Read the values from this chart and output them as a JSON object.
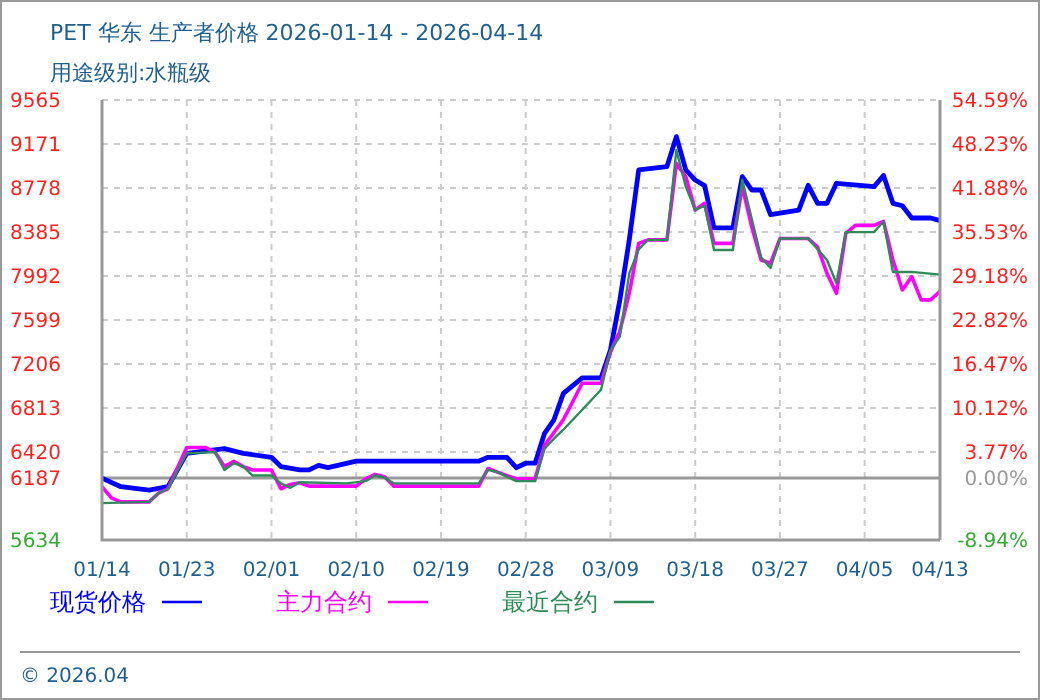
{
  "chart_data": {
    "type": "line",
    "title": "PET 华东 生产者价格 2026-01-14 - 2026-04-14",
    "subtitle": "用途级别:水瓶级",
    "xlim": [
      "2026-01-14",
      "2026-04-13"
    ],
    "xticks": [
      {
        "value": "2026-01-14",
        "label": "01/14"
      },
      {
        "value": "2026-01-23",
        "label": "01/23"
      },
      {
        "value": "2026-02-01",
        "label": "02/01"
      },
      {
        "value": "2026-02-10",
        "label": "02/10"
      },
      {
        "value": "2026-02-19",
        "label": "02/19"
      },
      {
        "value": "2026-02-28",
        "label": "02/28"
      },
      {
        "value": "2026-03-09",
        "label": "03/09"
      },
      {
        "value": "2026-03-18",
        "label": "03/18"
      },
      {
        "value": "2026-03-27",
        "label": "03/27"
      },
      {
        "value": "2026-04-05",
        "label": "04/05"
      },
      {
        "value": "2026-04-13",
        "label": "04/13"
      }
    ],
    "ylim": [
      5634,
      9565
    ],
    "yticks": [
      5634,
      6187,
      6420,
      6813,
      7206,
      7599,
      7992,
      8385,
      8778,
      9171,
      9565
    ],
    "y2lim": [
      -8.94,
      54.59
    ],
    "y2ticks": [
      {
        "value": -8.94,
        "label": "-8.94%"
      },
      {
        "value": 0,
        "label": "0.00%"
      },
      {
        "value": 3.77,
        "label": "3.77%"
      },
      {
        "value": 10.12,
        "label": "10.12%"
      },
      {
        "value": 16.47,
        "label": "16.47%"
      },
      {
        "value": 22.82,
        "label": "22.82%"
      },
      {
        "value": 29.18,
        "label": "29.18%"
      },
      {
        "value": 35.53,
        "label": "35.53%"
      },
      {
        "value": 41.88,
        "label": "41.88%"
      },
      {
        "value": 48.23,
        "label": "48.23%"
      },
      {
        "value": 54.59,
        "label": "54.59%"
      }
    ],
    "grid": true,
    "legend": "bottom",
    "line_style": "solid",
    "marker": "none",
    "ref_lines": [
      {
        "axis": "y",
        "value": 6187,
        "color": "#999999",
        "line_style": "solid"
      }
    ],
    "annotations": [
      "© 2026.04"
    ],
    "series": [
      {
        "name": "现货价格",
        "color": "#0000ff",
        "x": [
          "2026-01-14",
          "2026-01-16",
          "2026-01-19",
          "2026-01-21",
          "2026-01-23",
          "2026-01-27",
          "2026-01-29",
          "2026-02-01",
          "2026-02-02",
          "2026-02-04",
          "2026-02-05",
          "2026-02-06",
          "2026-02-07",
          "2026-02-10",
          "2026-02-23",
          "2026-02-24",
          "2026-02-26",
          "2026-02-27",
          "2026-02-28",
          "2026-03-01",
          "2026-03-02",
          "2026-03-03",
          "2026-03-04",
          "2026-03-06",
          "2026-03-08",
          "2026-03-09",
          "2026-03-10",
          "2026-03-11",
          "2026-03-12",
          "2026-03-15",
          "2026-03-16",
          "2026-03-17",
          "2026-03-18",
          "2026-03-19",
          "2026-03-20",
          "2026-03-22",
          "2026-03-23",
          "2026-03-24",
          "2026-03-25",
          "2026-03-26",
          "2026-03-29",
          "2026-03-30",
          "2026-03-31",
          "2026-04-01",
          "2026-04-02",
          "2026-04-06",
          "2026-04-07",
          "2026-04-08",
          "2026-04-09",
          "2026-04-10",
          "2026-04-12",
          "2026-04-13"
        ],
        "values": [
          6187,
          6110,
          6080,
          6110,
          6408,
          6450,
          6408,
          6373,
          6290,
          6260,
          6260,
          6300,
          6280,
          6338,
          6338,
          6373,
          6373,
          6280,
          6320,
          6320,
          6587,
          6708,
          6944,
          7082,
          7082,
          7332,
          7779,
          8315,
          8940,
          8970,
          9238,
          8940,
          8850,
          8800,
          8422,
          8422,
          8881,
          8761,
          8761,
          8541,
          8582,
          8803,
          8642,
          8642,
          8821,
          8791,
          8891,
          8642,
          8620,
          8511,
          8511,
          8487
        ]
      },
      {
        "name": "主力合约",
        "color": "#ff00ff",
        "x": [
          "2026-01-14",
          "2026-01-15",
          "2026-01-16",
          "2026-01-19",
          "2026-01-20",
          "2026-01-21",
          "2026-01-23",
          "2026-01-25",
          "2026-01-26",
          "2026-01-27",
          "2026-01-28",
          "2026-01-29",
          "2026-01-30",
          "2026-02-01",
          "2026-02-02",
          "2026-02-03",
          "2026-02-04",
          "2026-02-05",
          "2026-02-10",
          "2026-02-11",
          "2026-02-12",
          "2026-02-13",
          "2026-02-14",
          "2026-02-23",
          "2026-02-24",
          "2026-02-25",
          "2026-02-27",
          "2026-03-01",
          "2026-03-02",
          "2026-03-04",
          "2026-03-06",
          "2026-03-08",
          "2026-03-09",
          "2026-03-10",
          "2026-03-11",
          "2026-03-12",
          "2026-03-13",
          "2026-03-15",
          "2026-03-16",
          "2026-03-17",
          "2026-03-18",
          "2026-03-19",
          "2026-03-20",
          "2026-03-22",
          "2026-03-23",
          "2026-03-24",
          "2026-03-25",
          "2026-03-26",
          "2026-03-27",
          "2026-03-30",
          "2026-03-31",
          "2026-04-01",
          "2026-04-02",
          "2026-04-03",
          "2026-04-04",
          "2026-04-06",
          "2026-04-07",
          "2026-04-08",
          "2026-04-09",
          "2026-04-10",
          "2026-04-11",
          "2026-04-12",
          "2026-04-13"
        ],
        "values": [
          6110,
          6010,
          5975,
          5975,
          6052,
          6092,
          6460,
          6460,
          6420,
          6290,
          6338,
          6290,
          6260,
          6260,
          6092,
          6130,
          6145,
          6115,
          6115,
          6181,
          6220,
          6200,
          6115,
          6115,
          6273,
          6240,
          6181,
          6181,
          6480,
          6708,
          7034,
          7034,
          7314,
          7500,
          7838,
          8284,
          8315,
          8315,
          8999,
          8880,
          8582,
          8642,
          8284,
          8284,
          8791,
          8434,
          8136,
          8106,
          8327,
          8327,
          8250,
          8016,
          7838,
          8374,
          8445,
          8445,
          8480,
          8136,
          7868,
          7987,
          7779,
          7779,
          7856
        ]
      },
      {
        "name": "最近合约",
        "color": "#2e8b57",
        "x": [
          "2026-01-14",
          "2026-01-19",
          "2026-01-20",
          "2026-01-21",
          "2026-01-23",
          "2026-01-26",
          "2026-01-27",
          "2026-01-28",
          "2026-01-29",
          "2026-01-30",
          "2026-02-01",
          "2026-02-02",
          "2026-02-03",
          "2026-02-04",
          "2026-02-09",
          "2026-02-11",
          "2026-02-12",
          "2026-02-13",
          "2026-02-14",
          "2026-02-23",
          "2026-02-24",
          "2026-02-25",
          "2026-02-27",
          "2026-03-01",
          "2026-03-02",
          "2026-03-03",
          "2026-03-04",
          "2026-03-08",
          "2026-03-09",
          "2026-03-10",
          "2026-03-11",
          "2026-03-12",
          "2026-03-13",
          "2026-03-15",
          "2026-03-16",
          "2026-03-17",
          "2026-03-18",
          "2026-03-19",
          "2026-03-20",
          "2026-03-22",
          "2026-03-23",
          "2026-03-25",
          "2026-03-26",
          "2026-03-27",
          "2026-03-30",
          "2026-04-01",
          "2026-04-02",
          "2026-04-03",
          "2026-04-06",
          "2026-04-07",
          "2026-04-08",
          "2026-04-10",
          "2026-04-13"
        ],
        "values": [
          5963,
          5975,
          6052,
          6092,
          6408,
          6420,
          6260,
          6320,
          6290,
          6210,
          6210,
          6140,
          6100,
          6150,
          6140,
          6160,
          6210,
          6190,
          6140,
          6140,
          6260,
          6240,
          6160,
          6160,
          6450,
          6540,
          6619,
          6976,
          7332,
          7452,
          8016,
          8230,
          8315,
          8315,
          9118,
          8791,
          8582,
          8620,
          8225,
          8225,
          8850,
          8160,
          8064,
          8327,
          8327,
          8136,
          7927,
          8385,
          8385,
          8480,
          8029,
          8029,
          8005
        ]
      }
    ]
  }
}
